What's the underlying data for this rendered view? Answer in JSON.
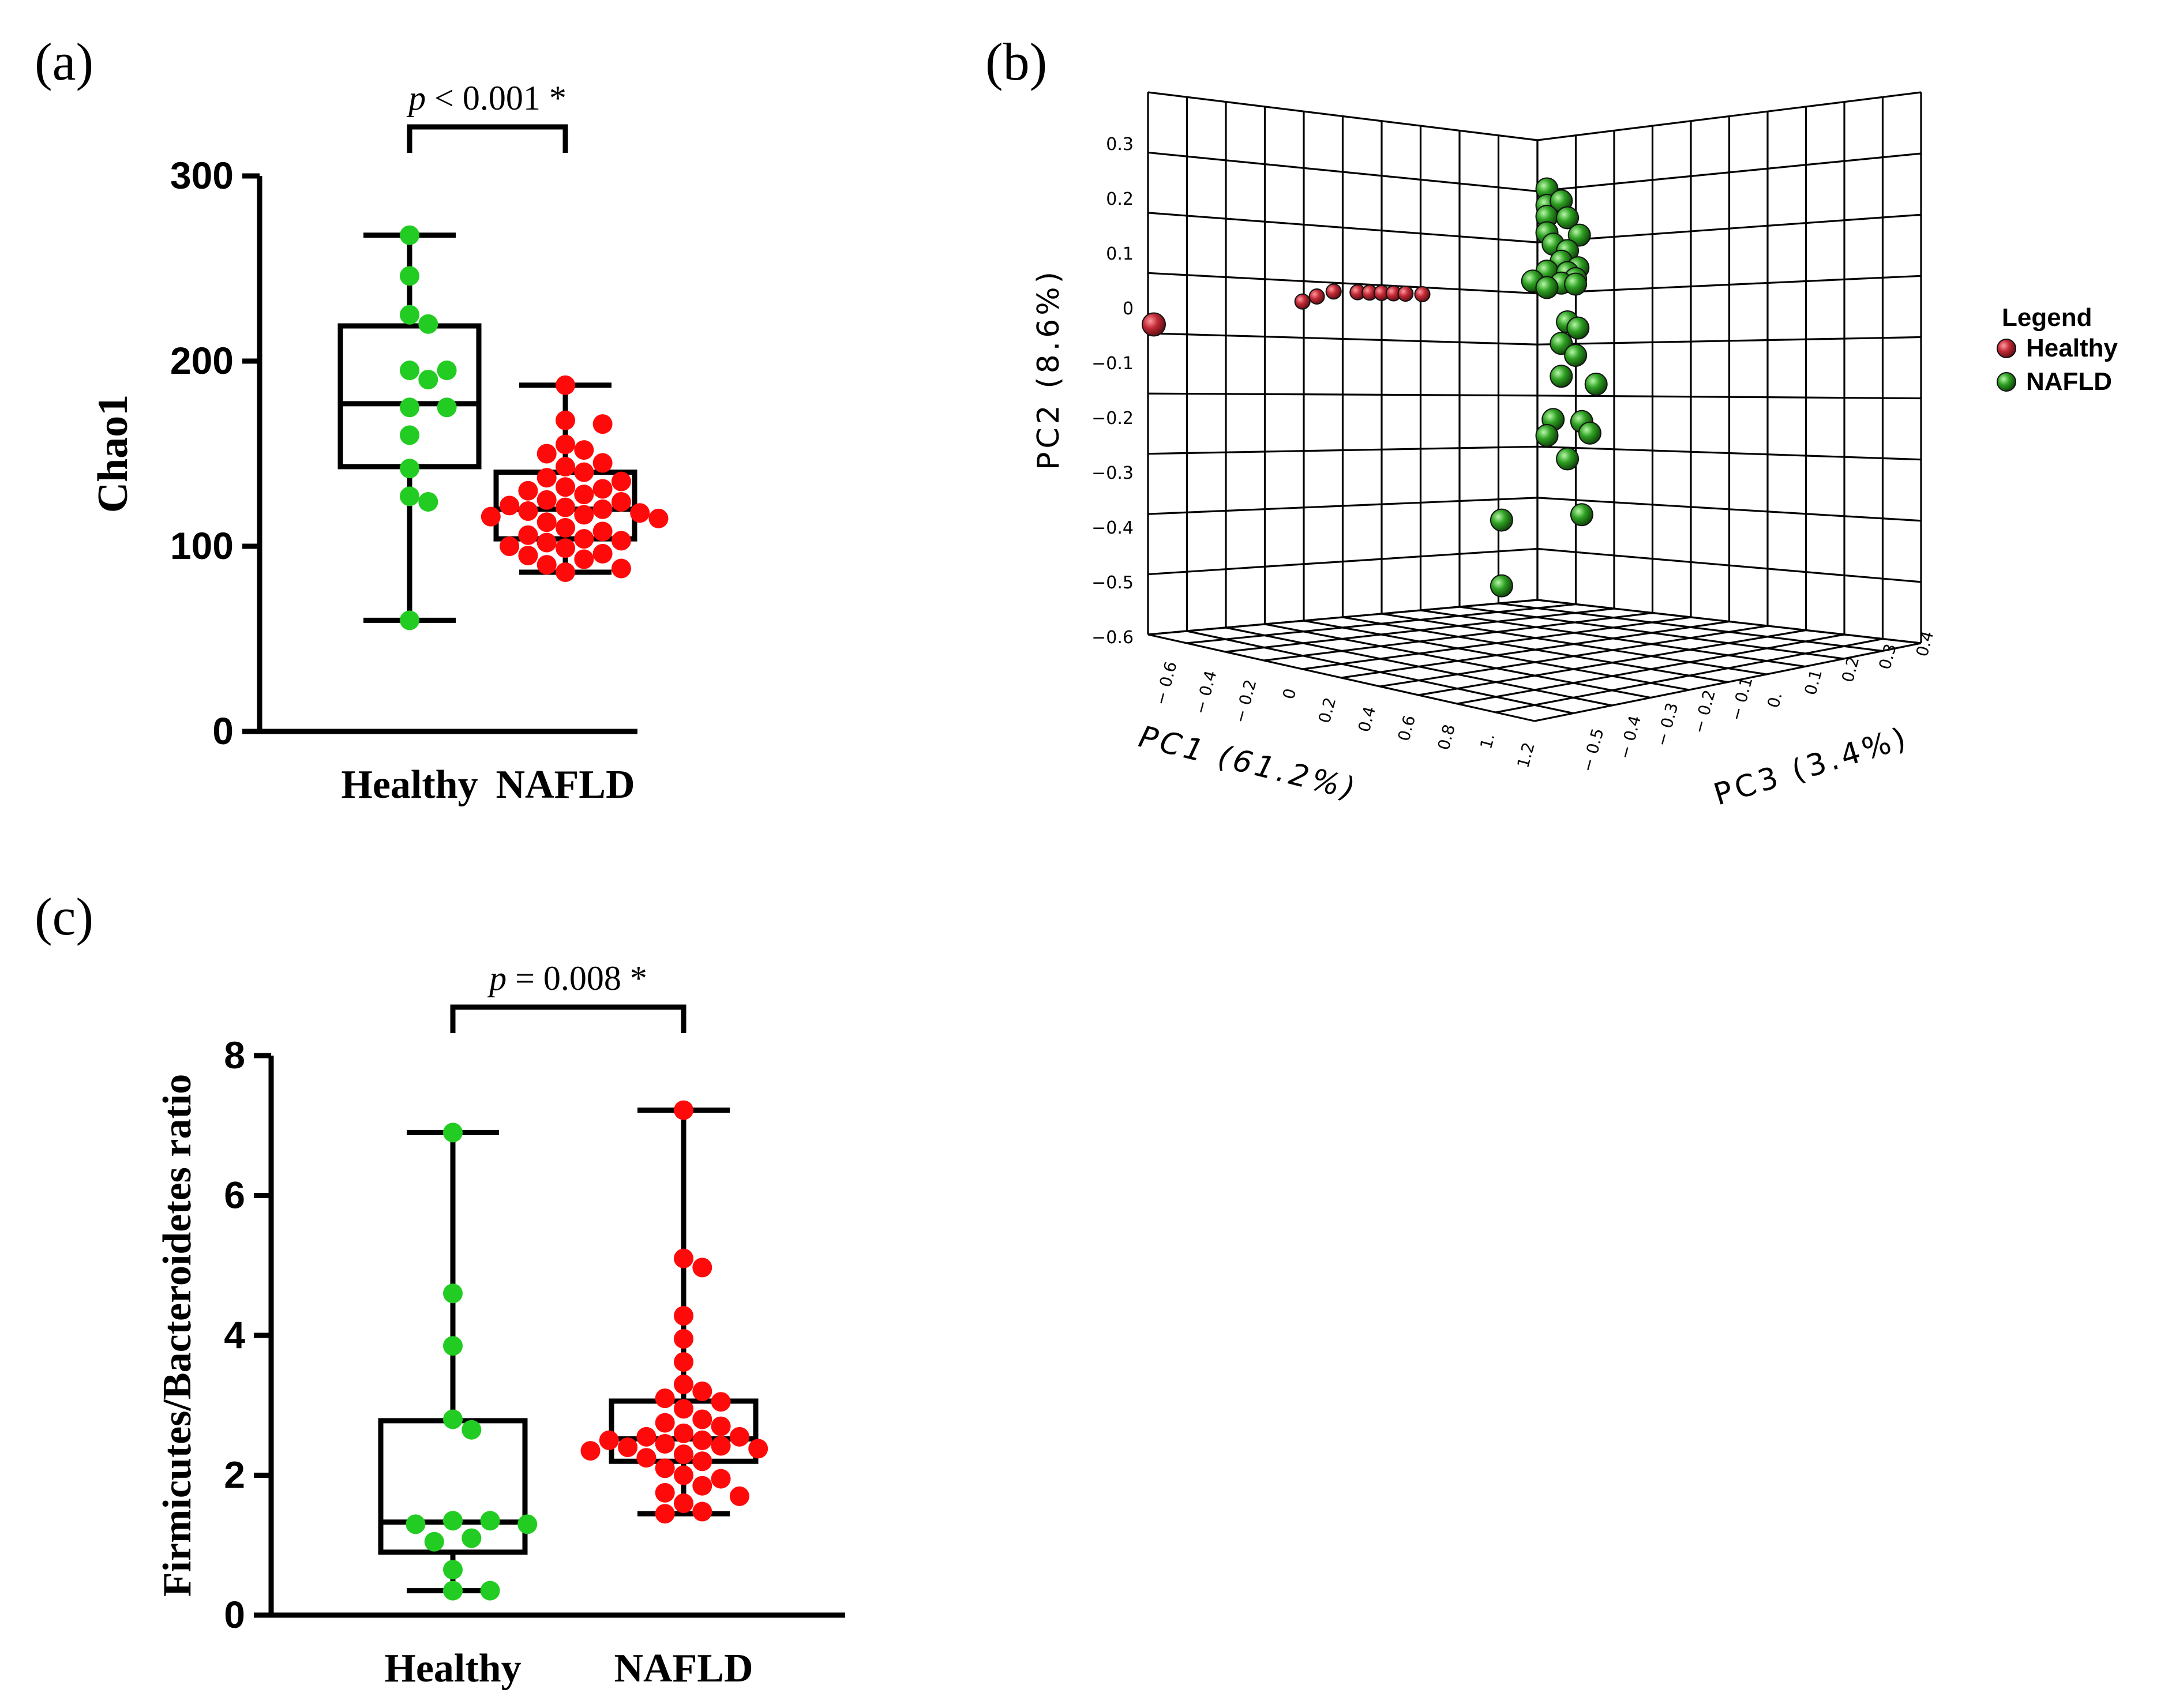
{
  "panels": {
    "a_label": "(a)",
    "b_label": "(b)",
    "c_label": "(c)"
  },
  "colors": {
    "healthy_box_points": "#22cc22",
    "nafld_box_points": "#ff0a0a",
    "healthy_3d": "#b3202c",
    "nafld_3d": "#2a9a20",
    "axis": "#000000",
    "grid3d": "#000000"
  },
  "chart_data": [
    {
      "id": "a",
      "type": "box",
      "title": "",
      "ylabel": "Chao1",
      "xlabel": "",
      "ylim": [
        0,
        300
      ],
      "yticks": [
        "0",
        "100",
        "200",
        "300"
      ],
      "categories": [
        "Healthy",
        "NAFLD"
      ],
      "annotation": {
        "p_symbol": "p",
        "text": " < 0.001 *"
      },
      "boxes": [
        {
          "name": "Healthy",
          "min": 60,
          "q1": 143,
          "median": 177,
          "q3": 219,
          "max": 268,
          "points": [
            268,
            246,
            225,
            220,
            195,
            195,
            190,
            175,
            175,
            160,
            142,
            127,
            124,
            60
          ]
        },
        {
          "name": "NAFLD",
          "min": 86,
          "q1": 104,
          "median": 120,
          "q3": 140,
          "max": 187,
          "points": [
            187,
            168,
            166,
            155,
            152,
            150,
            145,
            143,
            140,
            137,
            135,
            132,
            131,
            130,
            128,
            125,
            124,
            122,
            121,
            120,
            119,
            118,
            117,
            116,
            115,
            113,
            110,
            108,
            106,
            104,
            103,
            102,
            100,
            99,
            96,
            95,
            93,
            90,
            88,
            86
          ]
        }
      ]
    },
    {
      "id": "b",
      "type": "scatter3d",
      "xlabel": "PC1 (61.2%)",
      "ylabel": "PC2 (8.6%)",
      "zlabel": "PC3 (3.4%)",
      "legend": {
        "title": "Legend",
        "position": "right"
      },
      "yticks": [
        "0.3",
        "0.2",
        "0.1",
        "0",
        "−0.1",
        "−0.2",
        "−0.3",
        "−0.4",
        "−0.5",
        "−0.6"
      ],
      "xticks": [
        "− 0.6",
        "− 0.4",
        "− 0.2",
        "0",
        "0.2",
        "0.4",
        "0.6",
        "0.8",
        "1.",
        "1.2"
      ],
      "zticks": [
        "− 0.5",
        "− 0.4",
        "− 0.3",
        "− 0.2",
        "− 0.1",
        "0.",
        "0.1",
        "0.2",
        "0.3",
        "0.4"
      ],
      "series": [
        {
          "name": "Healthy",
          "points": [
            [
              -0.6,
              -0.05,
              0
            ],
            [
              0.02,
              0.0,
              0
            ],
            [
              0.08,
              0.01,
              0
            ],
            [
              0.15,
              0.02,
              0
            ],
            [
              0.25,
              0.02,
              0
            ],
            [
              0.3,
              0.02,
              0
            ],
            [
              0.35,
              0.02,
              0
            ],
            [
              0.4,
              0.02,
              0
            ],
            [
              0.45,
              0.02,
              0
            ],
            [
              0.52,
              0.02,
              0
            ]
          ]
        },
        {
          "name": "NAFLD",
          "points": [
            [
              1.0,
              0.22,
              0.05
            ],
            [
              1.0,
              0.19,
              0.05
            ],
            [
              1.02,
              0.2,
              0.1
            ],
            [
              1.0,
              0.17,
              0.05
            ],
            [
              1.03,
              0.17,
              0.12
            ],
            [
              1.0,
              0.14,
              0.05
            ],
            [
              1.04,
              0.14,
              0.17
            ],
            [
              1.01,
              0.12,
              0.07
            ],
            [
              1.03,
              0.11,
              0.12
            ],
            [
              1.02,
              0.09,
              0.1
            ],
            [
              1.05,
              0.08,
              0.15
            ],
            [
              1.0,
              0.07,
              0.05
            ],
            [
              1.03,
              0.07,
              0.12
            ],
            [
              1.04,
              0.06,
              0.15
            ],
            [
              0.98,
              0.05,
              0.0
            ],
            [
              1.02,
              0.05,
              0.1
            ],
            [
              1.04,
              0.05,
              0.15
            ],
            [
              1.0,
              0.04,
              0.05
            ],
            [
              1.03,
              -0.02,
              0.12
            ],
            [
              1.05,
              -0.03,
              0.15
            ],
            [
              1.02,
              -0.06,
              0.1
            ],
            [
              1.04,
              -0.08,
              0.15
            ],
            [
              1.02,
              -0.12,
              0.1
            ],
            [
              1.07,
              -0.13,
              0.22
            ],
            [
              1.01,
              -0.2,
              0.07
            ],
            [
              1.05,
              -0.2,
              0.17
            ],
            [
              1.06,
              -0.22,
              0.2
            ],
            [
              1.0,
              -0.23,
              0.05
            ],
            [
              1.03,
              -0.27,
              0.12
            ],
            [
              1.05,
              -0.37,
              0.17
            ],
            [
              0.93,
              -0.39,
              -0.1
            ],
            [
              0.93,
              -0.51,
              -0.1
            ]
          ]
        }
      ]
    },
    {
      "id": "c",
      "type": "box",
      "title": "",
      "ylabel": "Firmicutes/Bacteroidetes ratio",
      "xlabel": "",
      "ylim": [
        0,
        8
      ],
      "yticks": [
        "0",
        "2",
        "4",
        "6",
        "8"
      ],
      "categories": [
        "Healthy",
        "NAFLD"
      ],
      "annotation": {
        "p_symbol": "p",
        "text": " = 0.008 *"
      },
      "boxes": [
        {
          "name": "Healthy",
          "min": 0.35,
          "q1": 0.9,
          "median": 1.33,
          "q3": 2.78,
          "max": 6.9,
          "points": [
            6.9,
            4.6,
            3.85,
            2.8,
            2.65,
            1.35,
            1.35,
            1.3,
            1.3,
            1.1,
            1.05,
            0.65,
            0.35,
            0.35
          ]
        },
        {
          "name": "NAFLD",
          "min": 1.45,
          "q1": 2.2,
          "median": 2.52,
          "q3": 3.06,
          "max": 7.22,
          "points": [
            7.22,
            5.1,
            4.97,
            4.28,
            3.95,
            3.62,
            3.3,
            3.2,
            3.1,
            3.05,
            2.95,
            2.8,
            2.75,
            2.7,
            2.6,
            2.55,
            2.55,
            2.5,
            2.5,
            2.45,
            2.42,
            2.4,
            2.38,
            2.35,
            2.3,
            2.25,
            2.2,
            2.1,
            2.0,
            1.95,
            1.85,
            1.75,
            1.7,
            1.6,
            1.48,
            1.45
          ]
        }
      ]
    }
  ]
}
